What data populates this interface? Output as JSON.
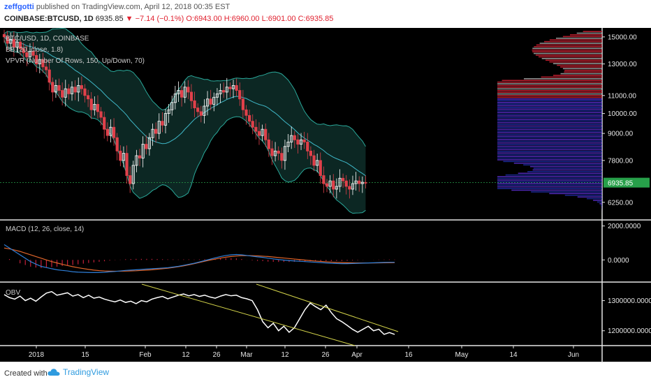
{
  "header": {
    "user": "zeffgotti",
    "published": "published on TradingView.com, April 12, 2018 00:35 EST",
    "symbol": "COINBASE:BTCUSD, 1D",
    "last": "6935.85",
    "change": "▼ −7.14 (−0.1%)",
    "ohlc": "O:6943.00 H:6960.00 L:6901.00 C:6935.85"
  },
  "footer": {
    "created_with": "Created with",
    "brand": "TradingView"
  },
  "colors": {
    "background": "#000000",
    "up_candle": "#ffffff",
    "down_candle": "#e0404a",
    "bb_band": "#2aa89a",
    "bb_fill": "#0d2b27",
    "macd_line": "#2f7fd8",
    "signal_line": "#e0652b",
    "histogram": "#c5203b",
    "obv_line": "#ffffff",
    "trendline": "#d4d44a",
    "last_price_bg": "#27a04a",
    "vpvr_up": "#5a2fd0",
    "vpvr_down": "#1f2fa8"
  },
  "chart_data": [
    {
      "type": "candlestick",
      "legend": [
        "BTC/USD, 1D, COINBASE",
        "BB (20, close, 1.8)",
        "VPVR (Number Of Rows, 150, Up/Down, 70)"
      ],
      "x_ticks": [
        "2018",
        "15",
        "Feb",
        "12",
        "26",
        "Mar",
        "12",
        "26",
        "Apr",
        "16",
        "May",
        "14",
        "Jun"
      ],
      "y_ticks": [
        15000,
        13000,
        11000,
        10000,
        9000,
        7800,
        6250
      ],
      "y_tick_labels": [
        "15000.00",
        "13000.00",
        "11000.00",
        "10000.00",
        "9000.00",
        "7800.00",
        "6250.00"
      ],
      "y_range": [
        5800,
        15500
      ],
      "last_price": 6935.85,
      "last_price_label": "6935.85",
      "close": [
        15000,
        14500,
        14800,
        14200,
        14600,
        14100,
        13800,
        13500,
        13900,
        13600,
        13000,
        13300,
        12800,
        12600,
        11800,
        11200,
        11600,
        11300,
        10900,
        11400,
        11100,
        11500,
        11200,
        11600,
        11400,
        11000,
        10800,
        10200,
        10500,
        10100,
        9800,
        9200,
        8900,
        9300,
        8800,
        8200,
        7800,
        8100,
        7200,
        6900,
        7600,
        8000,
        7900,
        8500,
        8300,
        8800,
        9200,
        9000,
        9600,
        9400,
        10000,
        10200,
        10600,
        11100,
        11300,
        10900,
        11500,
        11200,
        10700,
        10300,
        10100,
        9900,
        10400,
        10800,
        10500,
        10900,
        11100,
        11300,
        11200,
        11500,
        11400,
        11600,
        11300,
        10800,
        10200,
        9900,
        9600,
        9300,
        9100,
        8900,
        9200,
        8700,
        8300,
        8000,
        8200,
        8100,
        7800,
        8400,
        8600,
        8900,
        8700,
        8500,
        8700,
        8600,
        8200,
        8000,
        7600,
        7800,
        7200,
        6900,
        6800,
        7000,
        6700,
        6800,
        7100,
        7000,
        6800,
        6700,
        6900,
        7000,
        6900,
        6950,
        6935.85
      ],
      "open": [
        15200,
        15000,
        14500,
        14800,
        14200,
        14600,
        14100,
        13800,
        13500,
        13900,
        13600,
        13000,
        13300,
        12800,
        12600,
        11800,
        11200,
        11600,
        11300,
        10900,
        11400,
        11100,
        11500,
        11200,
        11600,
        11400,
        11000,
        10800,
        10200,
        10500,
        10100,
        9800,
        9200,
        8900,
        9300,
        8800,
        8200,
        7800,
        8100,
        7200,
        6900,
        7600,
        8000,
        7900,
        8500,
        8300,
        8800,
        9200,
        9000,
        9600,
        9400,
        10000,
        10200,
        10600,
        11100,
        11300,
        10900,
        11500,
        11200,
        10700,
        10300,
        10100,
        9900,
        10400,
        10800,
        10500,
        10900,
        11100,
        11300,
        11200,
        11500,
        11400,
        11600,
        11300,
        10800,
        10200,
        9900,
        9600,
        9300,
        9100,
        8900,
        9200,
        8700,
        8300,
        8000,
        8200,
        8100,
        7800,
        8400,
        8600,
        8900,
        8700,
        8500,
        8700,
        8600,
        8200,
        8000,
        7600,
        7800,
        7200,
        6900,
        6800,
        7000,
        6700,
        6800,
        7100,
        7000,
        6800,
        6700,
        6900,
        7000,
        6900,
        6943
      ]
    },
    {
      "type": "line",
      "legend": "MACD (12, 26, close, 14)",
      "y_tick_labels": [
        "2000.0000",
        "0.0000"
      ],
      "y_ticks": [
        2000,
        0
      ],
      "y_range": [
        -1100,
        2150
      ],
      "series": [
        {
          "name": "MACD",
          "values": [
            900,
            700,
            500,
            300,
            100,
            -100,
            -250,
            -380,
            -450,
            -520,
            -580,
            -620,
            -650,
            -700,
            -720,
            -730,
            -740,
            -745,
            -740,
            -730,
            -700,
            -680,
            -650,
            -620,
            -600,
            -580,
            -560,
            -540,
            -520,
            -500,
            -480,
            -460,
            -420,
            -380,
            -320,
            -260,
            -200,
            -120,
            -40,
            40,
            120,
            200,
            260,
            300,
            320,
            300,
            260,
            220,
            180,
            150,
            100,
            60,
            20,
            -10,
            -40,
            -60,
            -80,
            -100,
            -120,
            -140,
            -160,
            -180,
            -200,
            -210,
            -220,
            -220,
            -210,
            -200,
            -190,
            -180,
            -170,
            -160,
            -150,
            -140,
            -140
          ]
        },
        {
          "name": "Signal",
          "values": [
            700,
            650,
            580,
            500,
            400,
            300,
            200,
            100,
            0,
            -100,
            -180,
            -260,
            -330,
            -400,
            -460,
            -510,
            -560,
            -600,
            -630,
            -650,
            -660,
            -665,
            -665,
            -660,
            -650,
            -640,
            -620,
            -600,
            -580,
            -550,
            -520,
            -490,
            -450,
            -400,
            -350,
            -290,
            -220,
            -150,
            -80,
            -10,
            50,
            110,
            160,
            200,
            230,
            250,
            255,
            250,
            240,
            220,
            200,
            170,
            140,
            110,
            80,
            50,
            20,
            -10,
            -40,
            -70,
            -90,
            -110,
            -130,
            -150,
            -160,
            -170,
            -175,
            -178,
            -180,
            -180,
            -178,
            -175,
            -170,
            -165,
            -160
          ]
        }
      ],
      "histogram": [
        0,
        50,
        0,
        -200,
        -300,
        -400,
        -450,
        -480,
        -450,
        -420,
        -400,
        -360,
        -320,
        -300,
        -260,
        -220,
        -180,
        -145,
        -110,
        -80,
        -40,
        -15,
        15,
        40,
        50,
        60,
        60,
        60,
        60,
        50,
        40,
        30,
        30,
        20,
        30,
        30,
        20,
        30,
        40,
        50,
        70,
        90,
        100,
        100,
        90,
        50,
        5,
        -30,
        -60,
        -70,
        -100,
        -110,
        -120,
        -120,
        -120,
        -110,
        -100,
        -90,
        -80,
        -70,
        -70,
        -70,
        -70,
        -60,
        -60,
        -50,
        -35,
        -22,
        -10,
        0,
        8,
        15,
        20,
        25,
        20
      ]
    },
    {
      "type": "line",
      "legend": "OBV",
      "y_tick_labels": [
        "1300000.0000",
        "1200000.0000"
      ],
      "y_ticks": [
        1300000,
        1200000
      ],
      "y_range": [
        1160000,
        1350000
      ],
      "series": [
        {
          "name": "OBV",
          "values": [
            1320000,
            1310000,
            1305000,
            1315000,
            1300000,
            1308000,
            1298000,
            1312000,
            1325000,
            1330000,
            1318000,
            1322000,
            1326000,
            1315000,
            1320000,
            1310000,
            1318000,
            1308000,
            1312000,
            1305000,
            1300000,
            1296000,
            1302000,
            1294000,
            1298000,
            1290000,
            1300000,
            1296000,
            1305000,
            1310000,
            1314000,
            1306000,
            1312000,
            1318000,
            1322000,
            1316000,
            1320000,
            1314000,
            1318000,
            1312000,
            1308000,
            1315000,
            1320000,
            1316000,
            1318000,
            1310000,
            1306000,
            1300000,
            1270000,
            1230000,
            1210000,
            1225000,
            1200000,
            1215000,
            1195000,
            1210000,
            1240000,
            1270000,
            1292000,
            1280000,
            1270000,
            1285000,
            1260000,
            1240000,
            1230000,
            1218000,
            1205000,
            1195000,
            1205000,
            1215000,
            1200000,
            1205000,
            1188000,
            1194000,
            1188000
          ]
        }
      ]
    }
  ]
}
